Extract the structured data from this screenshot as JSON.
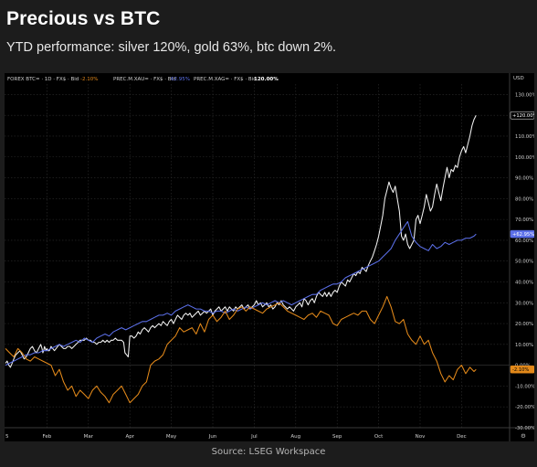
{
  "header": {
    "title": "Precious vs BTC",
    "subtitle": "YTD performance: silver 120%, gold 63%, btc down 2%."
  },
  "footer": {
    "source": "Source: LSEG Workspace"
  },
  "legend": {
    "btc": {
      "label": "FOREX BTC= · 1D · FX$ · Bid",
      "value": "-2.10%"
    },
    "gold": {
      "label": "PREC.M.XAU= · FX$ · Bid",
      "value": "62.95%"
    },
    "silver": {
      "label": "PREC.M.XAG= · FX$ · Bid",
      "value": "120.00%"
    }
  },
  "colors": {
    "silver": "#f2f2f2",
    "gold": "#5b6fe8",
    "btc": "#e3891a",
    "background": "#000000",
    "page": "#1c1c1c",
    "grid": "#2e2e2e"
  },
  "chart_data": {
    "type": "line",
    "y_unit": "%",
    "ylim": [
      -30,
      135
    ],
    "y_ticks": [
      "130.00%",
      "120.00%",
      "110.00%",
      "100.00%",
      "90.00%",
      "80.00%",
      "70.00%",
      "60.00%",
      "50.00%",
      "40.00%",
      "30.00%",
      "20.00%",
      "10.00%",
      "0.00%",
      "-10.00%",
      "-20.00%",
      "-30.00%"
    ],
    "y_axis_label": "USD",
    "x_ticks": [
      "5",
      "Feb",
      "Mar",
      "Apr",
      "May",
      "Jun",
      "Jul",
      "Aug",
      "Sep",
      "Oct",
      "Nov",
      "Dec"
    ],
    "last_labels": {
      "silver": "+120.00%",
      "gold": "+62.95%",
      "btc": "-2.10%"
    },
    "grid": true,
    "series": [
      {
        "key": "silver",
        "x": [
          0,
          0.04,
          0.08,
          0.12,
          0.16,
          0.2,
          0.25,
          0.3,
          0.35,
          0.4,
          0.45,
          0.5,
          0.55,
          0.6,
          0.65,
          0.7,
          0.75,
          0.8,
          0.85,
          0.88,
          0.9,
          0.92,
          0.94,
          0.96,
          0.98,
          1.0,
          1.02,
          1.06,
          1.1,
          1.14,
          1.18,
          1.22,
          1.26,
          1.3,
          1.35,
          1.4,
          1.45,
          1.5,
          1.55,
          1.6,
          1.65,
          1.7,
          1.75,
          1.8,
          1.85,
          1.9,
          1.95,
          2.0,
          2.05,
          2.1,
          2.15,
          2.2,
          2.25,
          2.3,
          2.35,
          2.4,
          2.45,
          2.5,
          2.55,
          2.6,
          2.65,
          2.7,
          2.75,
          2.8,
          2.85,
          2.88,
          2.92,
          2.96,
          3.0,
          3.05,
          3.1,
          3.15,
          3.2,
          3.25,
          3.3,
          3.35,
          3.4,
          3.45,
          3.5,
          3.55,
          3.6,
          3.65,
          3.7,
          3.75,
          3.8,
          3.85,
          3.9,
          3.95,
          4.0,
          4.05,
          4.1,
          4.15,
          4.2,
          4.25,
          4.3,
          4.35,
          4.4,
          4.45,
          4.5,
          4.55,
          4.6,
          4.65,
          4.7,
          4.75,
          4.8,
          4.85,
          4.9,
          4.95,
          5.0,
          5.05,
          5.1,
          5.15,
          5.2,
          5.25,
          5.3,
          5.35,
          5.4,
          5.45,
          5.5,
          5.55,
          5.6,
          5.65,
          5.7,
          5.75,
          5.8,
          5.85,
          5.9,
          5.95,
          6.0,
          6.05,
          6.1,
          6.15,
          6.2,
          6.25,
          6.3,
          6.35,
          6.4,
          6.45,
          6.5,
          6.55,
          6.6,
          6.65,
          6.7,
          6.75,
          6.8,
          6.85,
          6.9,
          6.95,
          7.0,
          7.05,
          7.1,
          7.15,
          7.2,
          7.25,
          7.3,
          7.35,
          7.4,
          7.45,
          7.5,
          7.55,
          7.6,
          7.65,
          7.7,
          7.75,
          7.8,
          7.85,
          7.9,
          7.95,
          8.0,
          8.05,
          8.1,
          8.15,
          8.2,
          8.25,
          8.3,
          8.35,
          8.4,
          8.45,
          8.5,
          8.55,
          8.6,
          8.65,
          8.7,
          8.75,
          8.8,
          8.85,
          8.9,
          8.95,
          9.0,
          9.05,
          9.1,
          9.15,
          9.2,
          9.25,
          9.3,
          9.35,
          9.4,
          9.45,
          9.5,
          9.55,
          9.6,
          9.65,
          9.7,
          9.75,
          9.8,
          9.85,
          9.9,
          9.95,
          10.0,
          10.05,
          10.1,
          10.15,
          10.2,
          10.25,
          10.3,
          10.35,
          10.4,
          10.45,
          10.5,
          10.55,
          10.6,
          10.65,
          10.7,
          10.75,
          10.8,
          10.85,
          10.9,
          10.95,
          11.0,
          11.05,
          11.1,
          11.15,
          11.2,
          11.25,
          11.3,
          11.35
        ],
        "values": [
          1,
          2,
          0,
          -1,
          1,
          3,
          5,
          6,
          7,
          5,
          3,
          4,
          6,
          8,
          9,
          7,
          6,
          8,
          10,
          8,
          6,
          7,
          9,
          8,
          7,
          8,
          7,
          7,
          9,
          8,
          7,
          8,
          9,
          10,
          9,
          8,
          8,
          9,
          9,
          8,
          9,
          10,
          11,
          12,
          12,
          12,
          13,
          12,
          12,
          11,
          11,
          10,
          11,
          11,
          12,
          11,
          12,
          11,
          12,
          12,
          13,
          12,
          12,
          12,
          11,
          6,
          5,
          4,
          14,
          14,
          13,
          14,
          16,
          15,
          17,
          18,
          17,
          16,
          18,
          19,
          18,
          19,
          20,
          19,
          21,
          20,
          19,
          21,
          22,
          20,
          22,
          24,
          23,
          22,
          24,
          25,
          24,
          25,
          23,
          24,
          25,
          26,
          24,
          25,
          26,
          25,
          26,
          27,
          24,
          26,
          27,
          28,
          26,
          27,
          28,
          26,
          28,
          27,
          26,
          28,
          27,
          28,
          29,
          27,
          28,
          29,
          27,
          28,
          29,
          31,
          29,
          30,
          28,
          29,
          30,
          28,
          29,
          27,
          28,
          30,
          29,
          31,
          29,
          28,
          27,
          28,
          27,
          26,
          28,
          29,
          30,
          28,
          32,
          31,
          29,
          31,
          32,
          30,
          33,
          35,
          34,
          33,
          35,
          33,
          35,
          33,
          35,
          36,
          35,
          38,
          40,
          39,
          38,
          41,
          40,
          42,
          44,
          43,
          45,
          44,
          47,
          46,
          45,
          48,
          50,
          52,
          55,
          58,
          62,
          67,
          72,
          80,
          84,
          88,
          85,
          83,
          86,
          80,
          74,
          62,
          60,
          63,
          58,
          56,
          58,
          60,
          70,
          72,
          68,
          72,
          76,
          82,
          78,
          74,
          76,
          82,
          87,
          83,
          79,
          85,
          90,
          95,
          90,
          94,
          93,
          96,
          95,
          100,
          103,
          105,
          102,
          106,
          110,
          115,
          118,
          120
        ]
      },
      {
        "key": "gold",
        "x": [
          0,
          0.1,
          0.2,
          0.3,
          0.4,
          0.5,
          0.6,
          0.7,
          0.8,
          0.9,
          1.0,
          1.1,
          1.2,
          1.3,
          1.4,
          1.5,
          1.6,
          1.7,
          1.8,
          1.9,
          2.0,
          2.1,
          2.2,
          2.3,
          2.4,
          2.5,
          2.6,
          2.7,
          2.8,
          2.9,
          3.0,
          3.1,
          3.2,
          3.3,
          3.4,
          3.5,
          3.6,
          3.7,
          3.8,
          3.9,
          4.0,
          4.1,
          4.2,
          4.3,
          4.4,
          4.5,
          4.6,
          4.7,
          4.8,
          4.9,
          5.0,
          5.1,
          5.2,
          5.3,
          5.4,
          5.5,
          5.6,
          5.7,
          5.8,
          5.9,
          6.0,
          6.1,
          6.2,
          6.3,
          6.4,
          6.5,
          6.6,
          6.7,
          6.8,
          6.9,
          7.0,
          7.1,
          7.2,
          7.3,
          7.4,
          7.5,
          7.6,
          7.7,
          7.8,
          7.9,
          8.0,
          8.1,
          8.2,
          8.3,
          8.4,
          8.5,
          8.6,
          8.7,
          8.8,
          8.9,
          9.0,
          9.1,
          9.2,
          9.3,
          9.4,
          9.5,
          9.6,
          9.7,
          9.8,
          9.9,
          10.0,
          10.1,
          10.2,
          10.3,
          10.4,
          10.5,
          10.6,
          10.7,
          10.8,
          10.9,
          11.0,
          11.1,
          11.2,
          11.3,
          11.35
        ],
        "values": [
          0,
          1,
          2,
          3,
          4,
          5,
          5,
          6,
          6,
          7,
          7,
          8,
          9,
          10,
          9,
          10,
          11,
          12,
          11,
          13,
          12,
          11,
          13,
          14,
          15,
          14,
          16,
          17,
          18,
          17,
          18,
          19,
          20,
          21,
          21,
          22,
          23,
          24,
          24,
          25,
          24,
          26,
          27,
          28,
          29,
          28,
          27,
          27,
          26,
          26,
          25,
          26,
          26,
          25,
          26,
          27,
          26,
          27,
          28,
          27,
          28,
          29,
          30,
          29,
          30,
          31,
          30,
          31,
          30,
          29,
          30,
          31,
          32,
          33,
          34,
          34,
          36,
          37,
          38,
          39,
          39,
          40,
          42,
          43,
          44,
          45,
          46,
          47,
          48,
          49,
          50,
          52,
          54,
          56,
          60,
          63,
          66,
          69,
          62,
          59,
          57,
          56,
          55,
          58,
          56,
          57,
          59,
          58,
          59,
          60,
          60,
          61,
          61,
          62,
          63
        ]
      },
      {
        "key": "btc",
        "x": [
          0,
          0.1,
          0.2,
          0.3,
          0.4,
          0.5,
          0.6,
          0.7,
          0.8,
          0.9,
          1.0,
          1.1,
          1.2,
          1.3,
          1.4,
          1.5,
          1.6,
          1.7,
          1.8,
          1.9,
          2.0,
          2.1,
          2.2,
          2.3,
          2.4,
          2.5,
          2.6,
          2.7,
          2.8,
          2.9,
          3.0,
          3.1,
          3.2,
          3.3,
          3.4,
          3.5,
          3.6,
          3.7,
          3.8,
          3.9,
          4.0,
          4.1,
          4.2,
          4.3,
          4.4,
          4.5,
          4.6,
          4.7,
          4.8,
          4.9,
          5.0,
          5.1,
          5.2,
          5.3,
          5.4,
          5.5,
          5.6,
          5.7,
          5.8,
          5.9,
          6.0,
          6.1,
          6.2,
          6.3,
          6.4,
          6.5,
          6.6,
          6.7,
          6.8,
          6.9,
          7.0,
          7.1,
          7.2,
          7.3,
          7.4,
          7.5,
          7.6,
          7.7,
          7.8,
          7.9,
          8.0,
          8.1,
          8.2,
          8.3,
          8.4,
          8.5,
          8.6,
          8.7,
          8.8,
          8.9,
          9.0,
          9.1,
          9.2,
          9.3,
          9.4,
          9.5,
          9.6,
          9.7,
          9.8,
          9.9,
          10.0,
          10.1,
          10.2,
          10.3,
          10.4,
          10.5,
          10.6,
          10.7,
          10.8,
          10.9,
          11.0,
          11.1,
          11.2,
          11.3,
          11.35
        ],
        "values": [
          8,
          6,
          4,
          8,
          6,
          3,
          2,
          4,
          3,
          2,
          1,
          0,
          -5,
          -2,
          -8,
          -12,
          -10,
          -15,
          -12,
          -14,
          -16,
          -12,
          -10,
          -13,
          -15,
          -18,
          -14,
          -12,
          -10,
          -14,
          -18,
          -16,
          -14,
          -10,
          -8,
          0,
          2,
          3,
          5,
          10,
          12,
          14,
          18,
          16,
          17,
          18,
          15,
          20,
          16,
          22,
          24,
          21,
          23,
          26,
          22,
          24,
          27,
          28,
          26,
          28,
          27,
          26,
          25,
          27,
          28,
          29,
          30,
          28,
          26,
          25,
          24,
          23,
          22,
          24,
          25,
          23,
          26,
          25,
          24,
          20,
          19,
          22,
          23,
          24,
          25,
          24,
          26,
          26,
          22,
          20,
          24,
          28,
          33,
          28,
          21,
          20,
          22,
          15,
          12,
          10,
          14,
          10,
          12,
          6,
          2,
          -4,
          -8,
          -5,
          -7,
          -2,
          0,
          -4,
          -1,
          -3,
          -2
        ]
      }
    ]
  }
}
